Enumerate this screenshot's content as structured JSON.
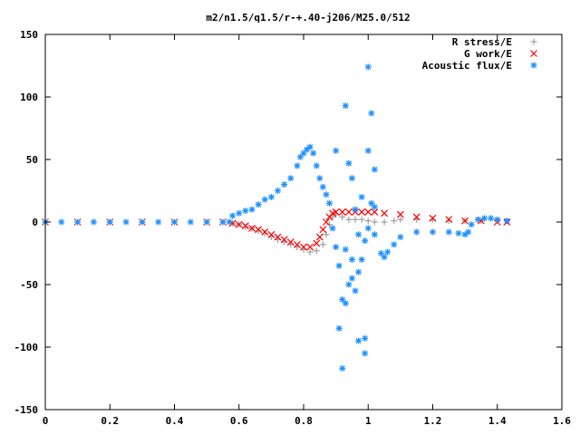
{
  "chart_data": {
    "type": "scatter",
    "title": "m2/n1.5/q1.5/r-+.40-j206/M25.0/512",
    "xlabel": "",
    "ylabel": "",
    "xlim": [
      0,
      1.6
    ],
    "ylim": [
      -150,
      150
    ],
    "xticks": [
      "0",
      "0.2",
      "0.4",
      "0.6",
      "0.8",
      "1",
      "1.2",
      "1.4",
      "1.6"
    ],
    "yticks": [
      "-150",
      "-100",
      "-50",
      "0",
      "50",
      "100",
      "150"
    ],
    "grid": false,
    "legend_position": "top-right",
    "series": [
      {
        "name": "R stress/E",
        "marker": "plus",
        "color": "#a0a0a0",
        "points": [
          [
            0.0,
            0
          ],
          [
            0.1,
            0
          ],
          [
            0.2,
            0
          ],
          [
            0.3,
            0
          ],
          [
            0.4,
            0
          ],
          [
            0.5,
            0
          ],
          [
            0.55,
            0
          ],
          [
            0.58,
            -1
          ],
          [
            0.6,
            -2
          ],
          [
            0.62,
            -4
          ],
          [
            0.64,
            -5
          ],
          [
            0.66,
            -7
          ],
          [
            0.68,
            -9
          ],
          [
            0.7,
            -12
          ],
          [
            0.72,
            -14
          ],
          [
            0.74,
            -16
          ],
          [
            0.76,
            -18
          ],
          [
            0.78,
            -20
          ],
          [
            0.8,
            -22
          ],
          [
            0.82,
            -24
          ],
          [
            0.84,
            -23
          ],
          [
            0.86,
            -18
          ],
          [
            0.87,
            -10
          ],
          [
            0.88,
            -2
          ],
          [
            0.89,
            4
          ],
          [
            0.9,
            6
          ],
          [
            0.92,
            4
          ],
          [
            0.94,
            2
          ],
          [
            0.96,
            2
          ],
          [
            0.98,
            2
          ],
          [
            1.0,
            1
          ],
          [
            1.02,
            0
          ],
          [
            1.05,
            0
          ],
          [
            1.08,
            1
          ],
          [
            1.1,
            2
          ],
          [
            1.15,
            2
          ],
          [
            1.2,
            2
          ],
          [
            1.25,
            1
          ],
          [
            1.3,
            1
          ],
          [
            1.35,
            1
          ],
          [
            1.4,
            1
          ],
          [
            1.43,
            1
          ]
        ]
      },
      {
        "name": "G work/E",
        "marker": "cross",
        "color": "#ff0000",
        "points": [
          [
            0.0,
            0
          ],
          [
            0.1,
            0
          ],
          [
            0.2,
            0
          ],
          [
            0.3,
            0
          ],
          [
            0.4,
            0
          ],
          [
            0.5,
            0
          ],
          [
            0.55,
            0
          ],
          [
            0.58,
            -1
          ],
          [
            0.6,
            -2
          ],
          [
            0.62,
            -3
          ],
          [
            0.64,
            -5
          ],
          [
            0.66,
            -6
          ],
          [
            0.68,
            -8
          ],
          [
            0.7,
            -10
          ],
          [
            0.72,
            -12
          ],
          [
            0.74,
            -14
          ],
          [
            0.76,
            -16
          ],
          [
            0.78,
            -18
          ],
          [
            0.8,
            -20
          ],
          [
            0.82,
            -20
          ],
          [
            0.84,
            -17
          ],
          [
            0.85,
            -12
          ],
          [
            0.86,
            -6
          ],
          [
            0.87,
            0
          ],
          [
            0.88,
            4
          ],
          [
            0.89,
            7
          ],
          [
            0.9,
            8
          ],
          [
            0.92,
            8
          ],
          [
            0.94,
            8
          ],
          [
            0.96,
            8
          ],
          [
            0.98,
            8
          ],
          [
            1.0,
            8
          ],
          [
            1.02,
            8
          ],
          [
            1.05,
            7
          ],
          [
            1.1,
            6
          ],
          [
            1.15,
            4
          ],
          [
            1.2,
            3
          ],
          [
            1.25,
            2
          ],
          [
            1.3,
            1
          ],
          [
            1.35,
            1
          ],
          [
            1.4,
            0
          ],
          [
            1.43,
            0
          ]
        ]
      },
      {
        "name": "Acoustic flux/E",
        "marker": "star",
        "color": "#1e90ff",
        "points": [
          [
            0.0,
            0
          ],
          [
            0.05,
            0
          ],
          [
            0.1,
            0
          ],
          [
            0.15,
            0
          ],
          [
            0.2,
            0
          ],
          [
            0.25,
            0
          ],
          [
            0.3,
            0
          ],
          [
            0.35,
            0
          ],
          [
            0.4,
            0
          ],
          [
            0.45,
            0
          ],
          [
            0.5,
            0
          ],
          [
            0.55,
            0
          ],
          [
            0.57,
            0
          ],
          [
            0.58,
            5
          ],
          [
            0.6,
            7
          ],
          [
            0.62,
            9
          ],
          [
            0.64,
            10
          ],
          [
            0.66,
            14
          ],
          [
            0.68,
            18
          ],
          [
            0.7,
            20
          ],
          [
            0.72,
            25
          ],
          [
            0.74,
            30
          ],
          [
            0.76,
            35
          ],
          [
            0.78,
            45
          ],
          [
            0.79,
            52
          ],
          [
            0.8,
            55
          ],
          [
            0.81,
            58
          ],
          [
            0.82,
            60
          ],
          [
            0.83,
            55
          ],
          [
            0.84,
            45
          ],
          [
            0.85,
            35
          ],
          [
            0.86,
            28
          ],
          [
            0.87,
            22
          ],
          [
            0.88,
            15
          ],
          [
            0.89,
            -5
          ],
          [
            0.9,
            -20
          ],
          [
            0.91,
            -35
          ],
          [
            0.92,
            -62
          ],
          [
            0.93,
            -65
          ],
          [
            0.94,
            -50
          ],
          [
            0.95,
            -45
          ],
          [
            0.96,
            -55
          ],
          [
            0.97,
            -40
          ],
          [
            0.98,
            -30
          ],
          [
            0.99,
            -15
          ],
          [
            1.0,
            -5
          ],
          [
            1.02,
            -10
          ],
          [
            1.04,
            -25
          ],
          [
            1.05,
            -28
          ],
          [
            1.06,
            -24
          ],
          [
            1.08,
            -18
          ],
          [
            1.1,
            -12
          ],
          [
            1.15,
            -8
          ],
          [
            1.2,
            -8
          ],
          [
            1.25,
            -8
          ],
          [
            1.28,
            -9
          ],
          [
            1.3,
            -10
          ],
          [
            1.31,
            -8
          ],
          [
            1.32,
            -2
          ],
          [
            1.34,
            2
          ],
          [
            1.36,
            3
          ],
          [
            1.38,
            3
          ],
          [
            1.4,
            2
          ],
          [
            1.43,
            1
          ],
          [
            0.91,
            -85
          ],
          [
            0.92,
            -117
          ],
          [
            0.93,
            93
          ],
          [
            0.9,
            57
          ],
          [
            0.94,
            47
          ],
          [
            0.95,
            35
          ],
          [
            0.97,
            -95
          ],
          [
            0.99,
            -93
          ],
          [
            0.99,
            -105
          ],
          [
            1.0,
            124
          ],
          [
            1.01,
            87
          ],
          [
            1.02,
            42
          ],
          [
            1.0,
            57
          ],
          [
            1.01,
            15
          ],
          [
            0.96,
            10
          ],
          [
            0.93,
            -22
          ],
          [
            0.95,
            -30
          ],
          [
            1.02,
            12
          ],
          [
            0.98,
            20
          ],
          [
            0.97,
            -10
          ]
        ]
      }
    ]
  }
}
